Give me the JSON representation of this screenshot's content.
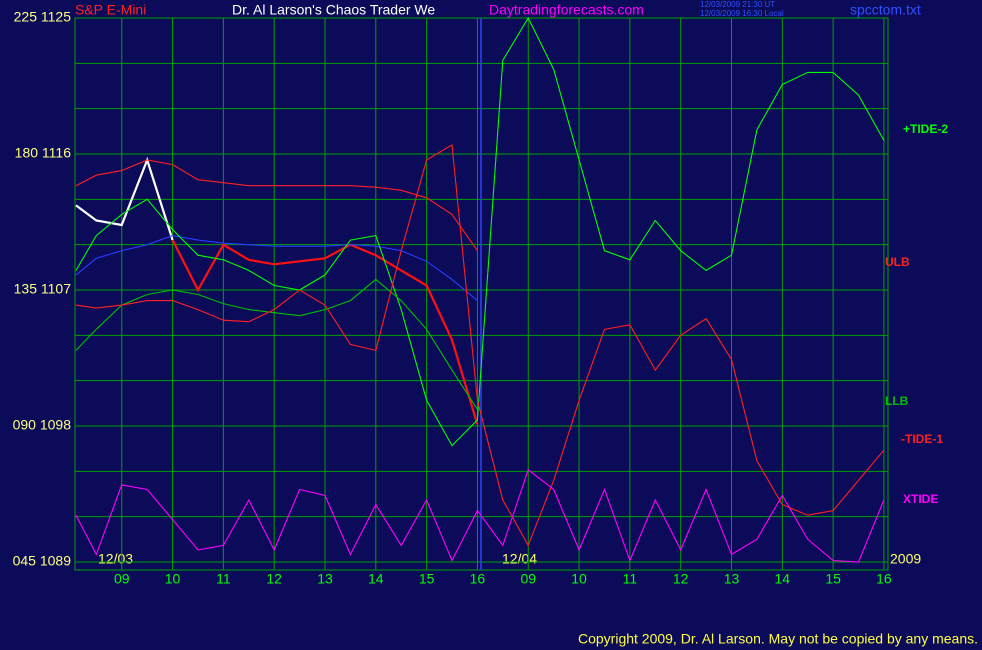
{
  "chart_data": {
    "type": "line",
    "title": "Dr. Al Larson's Chaos Trader We",
    "symbol": "S&P E-Mini",
    "site": "Daytradingforecasts.com",
    "stamp_ut": "12/03/2009 21:30 UT",
    "stamp_local": "12/03/2009 16:30 Local",
    "file": "spcctom.txt",
    "date_labels": [
      "12/03",
      "12/04",
      "2009"
    ],
    "copyright": "Copyright 2009, Dr. Al Larson. May not be copied by any means.",
    "xlim": [
      0.08,
      16.08
    ],
    "xticks": [
      {
        "value": 1,
        "label": "09"
      },
      {
        "value": 2,
        "label": "10"
      },
      {
        "value": 3,
        "label": "11"
      },
      {
        "value": 4,
        "label": "12"
      },
      {
        "value": 5,
        "label": "13"
      },
      {
        "value": 6,
        "label": "14"
      },
      {
        "value": 7,
        "label": "15"
      },
      {
        "value": 8,
        "label": "16"
      },
      {
        "value": 9,
        "label": "09"
      },
      {
        "value": 10,
        "label": "10"
      },
      {
        "value": 11,
        "label": "11"
      },
      {
        "value": 12,
        "label": "12"
      },
      {
        "value": 13,
        "label": "13"
      },
      {
        "value": 14,
        "label": "14"
      },
      {
        "value": 15,
        "label": "15"
      },
      {
        "value": 16,
        "label": "16"
      }
    ],
    "day_divider": 8.07,
    "ylim": [
      1089,
      1125
    ],
    "yticks": [
      {
        "value": 1125,
        "label": "225 1125"
      },
      {
        "value": 1116,
        "label": "180 1116"
      },
      {
        "value": 1107,
        "label": "135 1107"
      },
      {
        "value": 1098,
        "label": "090 1098"
      },
      {
        "value": 1089,
        "label": "045 1089"
      }
    ],
    "minor_yticks": [
      1122,
      1119,
      1113,
      1110,
      1104,
      1101,
      1095,
      1092
    ],
    "grid": true,
    "x": [
      0.1,
      0.5,
      1,
      1.5,
      2,
      2.5,
      3,
      3.5,
      4,
      4.5,
      5,
      5.5,
      6,
      6.5,
      7,
      7.5,
      8,
      8.5,
      9,
      9.5,
      10,
      10.5,
      11,
      11.5,
      12,
      12.5,
      13,
      13.5,
      14,
      14.5,
      15,
      15.5,
      16
    ],
    "series": [
      {
        "color": "#ffffff",
        "values": [
          1112.6,
          1111.6,
          1111.3,
          1115.6,
          1110.3,
          null,
          null,
          null,
          null,
          null,
          null,
          null,
          null,
          null,
          null,
          null,
          null,
          null,
          null,
          null,
          null,
          null,
          null,
          null,
          null,
          null,
          null,
          null,
          null,
          null,
          null,
          null,
          null
        ]
      },
      {
        "color": "#ff1010",
        "values": [
          null,
          null,
          null,
          null,
          1110.3,
          1107.0,
          1110.0,
          1109.0,
          1108.7,
          1108.9,
          1109.1,
          1110.0,
          1109.3,
          1108.3,
          1107.3,
          1103.7,
          1098.1,
          null,
          null,
          null,
          null,
          null,
          null,
          null,
          null,
          null,
          null,
          null,
          null,
          null,
          null,
          null,
          null
        ]
      },
      {
        "color": "#2a3cff",
        "values": [
          1108.0,
          1109.1,
          1109.6,
          1110.0,
          1110.6,
          1110.3,
          1110.1,
          1110.0,
          1109.9,
          1109.9,
          1109.9,
          1110.0,
          1109.9,
          1109.6,
          1108.9,
          1107.7,
          1106.3,
          null,
          null,
          null,
          null,
          null,
          null,
          null,
          null,
          null,
          null,
          null,
          null,
          null,
          null,
          null,
          null
        ]
      },
      {
        "name": "+TIDE-2",
        "color": "#00ff00",
        "values": [
          1108.3,
          1110.6,
          1112.0,
          1113.0,
          1111.0,
          1109.3,
          1109.0,
          1108.3,
          1107.3,
          1107.0,
          1108.0,
          1110.3,
          1110.6,
          1105.7,
          1099.7,
          1096.7,
          1098.4,
          1122.2,
          1125.0,
          1121.6,
          1115.6,
          1109.6,
          1109.0,
          1111.6,
          1109.6,
          1108.3,
          1109.3,
          1117.6,
          1120.6,
          1121.4,
          1121.4,
          1119.9,
          1116.9
        ]
      },
      {
        "name": "ULB",
        "color": "#ff2020",
        "values": [
          1113.9,
          1114.6,
          1114.9,
          1115.6,
          1115.3,
          1114.3,
          1114.1,
          1113.9,
          1113.9,
          1113.9,
          1113.9,
          1113.9,
          1113.8,
          1113.6,
          1113.1,
          1112.0,
          1109.6,
          null,
          null,
          null,
          null,
          null,
          null,
          null,
          null,
          null,
          null,
          null,
          null,
          null,
          null,
          null,
          null
        ]
      },
      {
        "name": "LLB",
        "color": "#00c000",
        "values": [
          1103.0,
          1104.4,
          1106.0,
          1106.7,
          1107.0,
          1106.7,
          1106.1,
          1105.7,
          1105.5,
          1105.3,
          1105.7,
          1106.3,
          1107.7,
          1106.3,
          1104.4,
          1101.7,
          1099.1,
          null,
          null,
          null,
          null,
          null,
          null,
          null,
          null,
          null,
          null,
          null,
          null,
          null,
          null,
          null,
          null
        ]
      },
      {
        "name": "-TIDE-1",
        "color": "#ff2020",
        "values": [
          1106.0,
          1105.8,
          1106.0,
          1106.3,
          1106.3,
          1105.7,
          1105.0,
          1104.9,
          1105.7,
          1107.0,
          1106.0,
          1103.4,
          1103.0,
          1109.6,
          1115.6,
          1116.6,
          1099.7,
          1093.1,
          1090.1,
          1094.4,
          1099.7,
          1104.4,
          1104.7,
          1101.7,
          1104.0,
          1105.1,
          1102.4,
          1095.7,
          1092.8,
          1092.1,
          1092.4,
          1094.4,
          1096.4
        ]
      },
      {
        "name": "XTIDE",
        "color": "#ff00ff",
        "values": [
          1092.1,
          1089.5,
          1094.1,
          1093.8,
          1091.8,
          1089.8,
          1090.1,
          1093.1,
          1089.8,
          1093.8,
          1093.4,
          1089.5,
          1092.8,
          1090.1,
          1093.1,
          1089.1,
          1092.4,
          1090.1,
          1095.1,
          1093.8,
          1089.8,
          1093.8,
          1089.1,
          1093.1,
          1089.8,
          1093.8,
          1089.5,
          1090.5,
          1093.4,
          1090.5,
          1089.1,
          1089.0,
          1093.1
        ]
      }
    ]
  }
}
